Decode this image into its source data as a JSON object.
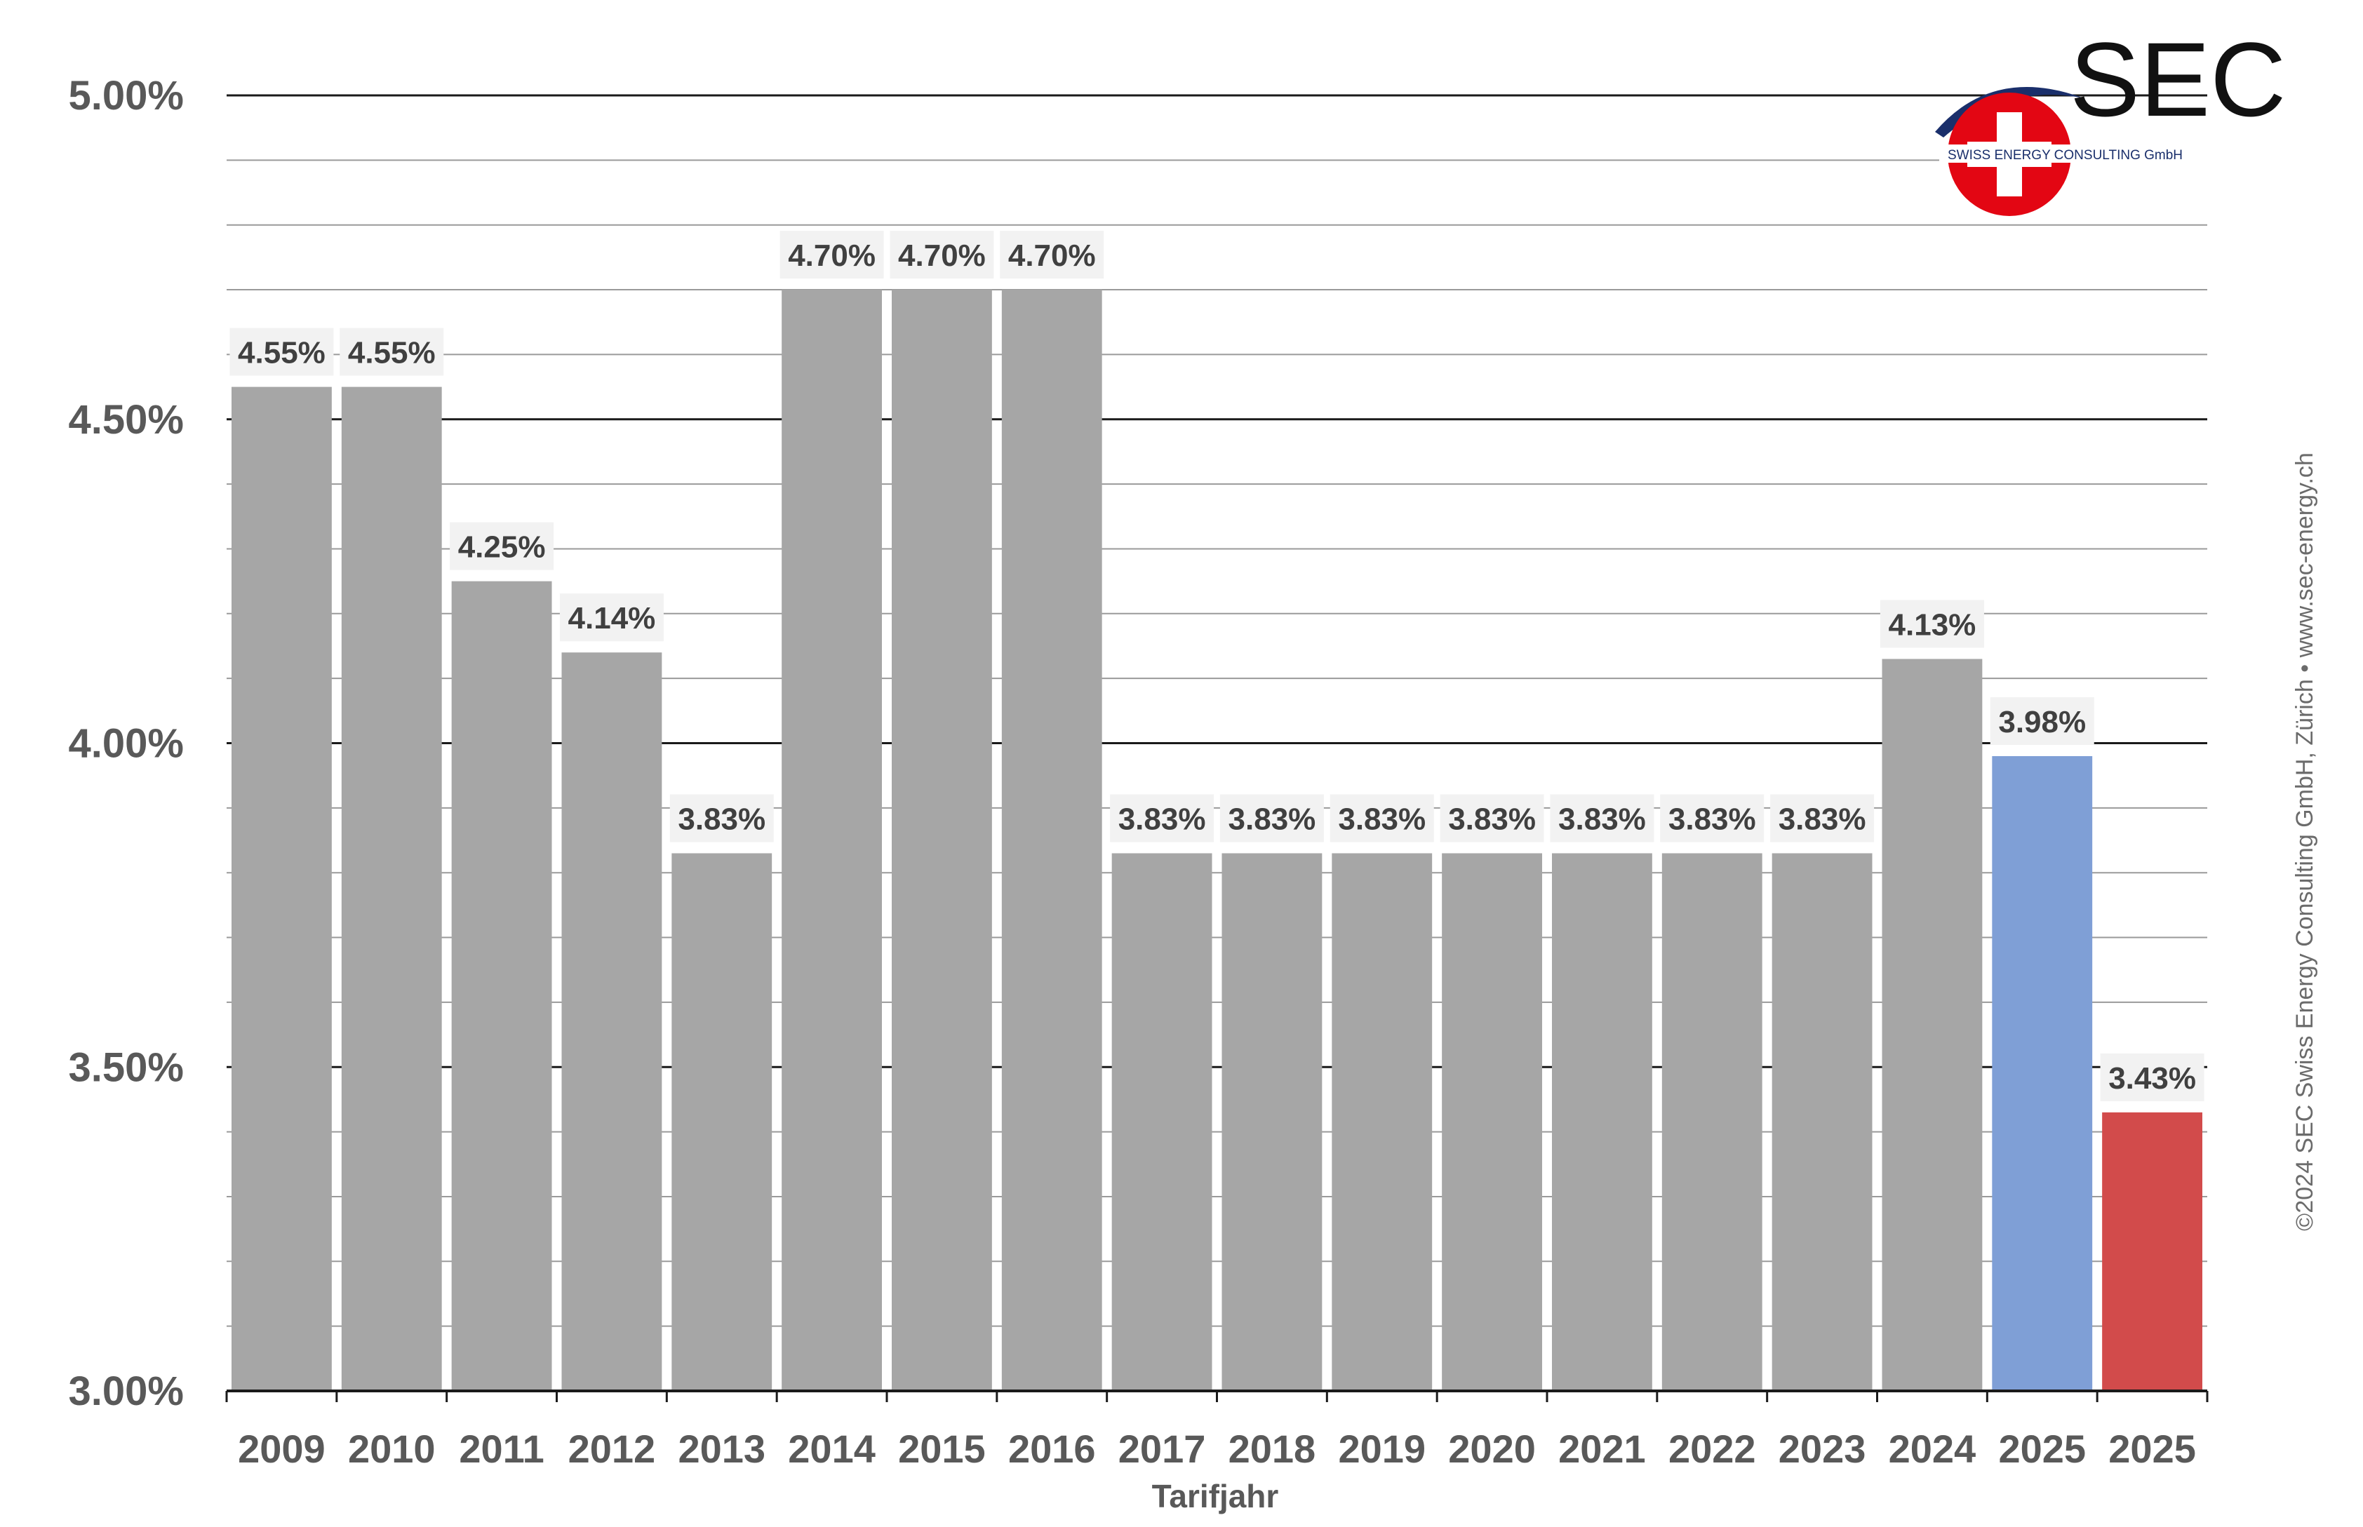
{
  "chart_data": {
    "type": "bar",
    "categories": [
      "2009",
      "2010",
      "2011",
      "2012",
      "2013",
      "2014",
      "2015",
      "2016",
      "2017",
      "2018",
      "2019",
      "2020",
      "2021",
      "2022",
      "2023",
      "2024",
      "2025",
      "2025"
    ],
    "values": [
      4.55,
      4.55,
      4.25,
      4.14,
      3.83,
      4.7,
      4.7,
      4.7,
      3.83,
      3.83,
      3.83,
      3.83,
      3.83,
      3.83,
      3.83,
      4.13,
      3.98,
      3.43
    ],
    "data_labels": [
      "4.55%",
      "4.55%",
      "4.25%",
      "4.14%",
      "3.83%",
      "4.70%",
      "4.70%",
      "4.70%",
      "3.83%",
      "3.83%",
      "3.83%",
      "3.83%",
      "3.83%",
      "3.83%",
      "3.83%",
      "4.13%",
      "3.98%",
      "3.43%"
    ],
    "bar_colors": [
      "#a6a6a6",
      "#a6a6a6",
      "#a6a6a6",
      "#a6a6a6",
      "#a6a6a6",
      "#a6a6a6",
      "#a6a6a6",
      "#a6a6a6",
      "#a6a6a6",
      "#a6a6a6",
      "#a6a6a6",
      "#a6a6a6",
      "#a6a6a6",
      "#a6a6a6",
      "#a6a6a6",
      "#a6a6a6",
      "#7f9fd6",
      "#d24b4b"
    ],
    "title": "",
    "xlabel": "Tarifjahr",
    "ylabel": "",
    "ylim": [
      3.0,
      5.0
    ],
    "yticks": [
      3.0,
      3.5,
      4.0,
      4.5,
      5.0
    ],
    "ytick_labels": [
      "3.00%",
      "3.50%",
      "4.00%",
      "4.50%",
      "5.00%"
    ],
    "minor_grid_step": 0.1,
    "grid": true,
    "legend": "none"
  },
  "logo": {
    "name": "SEC",
    "subtitle": "SWISS ENERGY CONSULTING GmbH"
  },
  "copyright": "©2024 SEC Swiss Energy Consulting GmbH, Zürich • www.sec-energy.ch",
  "colors": {
    "bar_default": "#a6a6a6",
    "bar_highlight_blue": "#7f9fd6",
    "bar_highlight_red": "#d24b4b",
    "logo_red": "#e30613",
    "logo_navy": "#1a2f6b"
  }
}
